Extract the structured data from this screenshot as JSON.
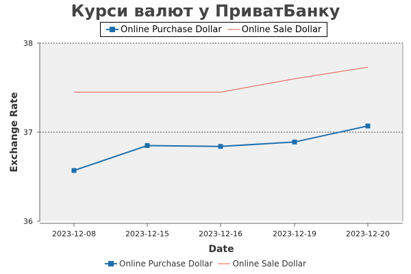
{
  "chart_data": {
    "type": "line",
    "title": "Курси валют у ПриватБанку",
    "xlabel": "Date",
    "ylabel": "Exchange Rate",
    "categories": [
      "2023-12-08",
      "2023-12-15",
      "2023-12-16",
      "2023-12-19",
      "2023-12-20"
    ],
    "ylim": [
      36,
      38
    ],
    "yticks": [
      "36",
      "37",
      "38"
    ],
    "grid": "dashed line at 37",
    "legend_position": "top and bottom",
    "series": [
      {
        "name": "Online Purchase Dollar",
        "values": [
          36.57,
          36.85,
          36.84,
          36.89,
          37.07
        ],
        "color": "#1f6fad",
        "marker": "square"
      },
      {
        "name": "Online Sale Dollar",
        "values": [
          37.45,
          37.45,
          37.45,
          37.6,
          37.73
        ],
        "color": "#e8594a",
        "marker": "none"
      }
    ]
  }
}
